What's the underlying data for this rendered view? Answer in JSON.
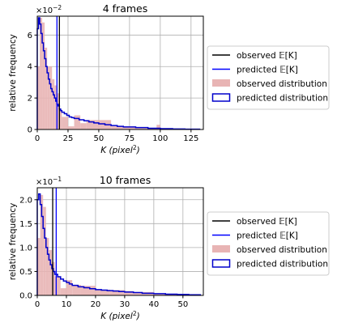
{
  "chart_data": [
    {
      "type": "bar",
      "title": "4 frames",
      "xlabel_main": "K",
      "xlabel_unit": "(pixel",
      "xlabel_sup": "2",
      "xlabel_close": ")",
      "ylabel": "relative frequency",
      "scale_prefix": "×10",
      "scale_exp": "−2",
      "xlim": [
        0,
        135
      ],
      "ylim": [
        0,
        0.072
      ],
      "xticks": [
        0,
        25,
        50,
        75,
        100,
        125
      ],
      "xtick_labels": [
        "0",
        "25",
        "50",
        "75",
        "100",
        "125"
      ],
      "yticks": [
        0,
        0.02,
        0.04,
        0.06
      ],
      "ytick_labels": [
        "0",
        "2",
        "4",
        "6"
      ],
      "grid": true,
      "legend_position": "right",
      "observed_mean": 18,
      "predicted_mean": 16,
      "observed_hist": {
        "edges": [
          0,
          2,
          4,
          6,
          8,
          10,
          12,
          14,
          16,
          18,
          20,
          25,
          30,
          35,
          40,
          50,
          60,
          70,
          80,
          90,
          97,
          100,
          110,
          120,
          130
        ],
        "values": [
          0.04,
          0.071,
          0.068,
          0.052,
          0.04,
          0.04,
          0.032,
          0.028,
          0.023,
          0.012,
          0.008,
          0.002,
          0.009,
          0.004,
          0.006,
          0.006,
          0.002,
          0.002,
          0.0008,
          0.0008,
          0.003,
          0.0003,
          0.0002,
          0.0002
        ]
      },
      "predicted_hist": {
        "edges": [
          0,
          1,
          2,
          3,
          4,
          5,
          6,
          7,
          8,
          9,
          10,
          11,
          12,
          13,
          14,
          15,
          16,
          17,
          18,
          19,
          20,
          22,
          24,
          26,
          28,
          30,
          34,
          38,
          42,
          46,
          50,
          55,
          60,
          65,
          70,
          80,
          90,
          100,
          110,
          120,
          132
        ],
        "values": [
          0.064,
          0.071,
          0.067,
          0.061,
          0.055,
          0.05,
          0.045,
          0.04,
          0.036,
          0.032,
          0.029,
          0.026,
          0.024,
          0.022,
          0.02,
          0.018,
          0.016,
          0.015,
          0.013,
          0.012,
          0.011,
          0.01,
          0.009,
          0.008,
          0.0075,
          0.007,
          0.0062,
          0.0055,
          0.0048,
          0.0042,
          0.0036,
          0.003,
          0.0025,
          0.002,
          0.0016,
          0.0012,
          0.0008,
          0.0005,
          0.0003,
          0.0002
        ]
      },
      "series": [
        {
          "name": "observed 𝔼[K]",
          "color": "#000000"
        },
        {
          "name": "predicted 𝔼[K]",
          "color": "#0000ff"
        },
        {
          "name": "observed distribution",
          "color": "#e8b4b4"
        },
        {
          "name": "predicted distribution",
          "color": "#0000cc"
        }
      ]
    },
    {
      "type": "bar",
      "title": "10 frames",
      "xlabel_main": "K",
      "xlabel_unit": "(pixel",
      "xlabel_sup": "2",
      "xlabel_close": ")",
      "ylabel": "relative frequency",
      "scale_prefix": "×10",
      "scale_exp": "−1",
      "xlim": [
        0,
        57
      ],
      "ylim": [
        0,
        0.225
      ],
      "xticks": [
        0,
        10,
        20,
        30,
        40,
        50
      ],
      "xtick_labels": [
        "0",
        "10",
        "20",
        "30",
        "40",
        "50"
      ],
      "yticks": [
        0,
        0.05,
        0.1,
        0.15,
        0.2
      ],
      "ytick_labels": [
        "0.0",
        "0.5",
        "1.0",
        "1.5",
        "2.0"
      ],
      "grid": true,
      "legend_position": "right",
      "observed_mean": 5.3,
      "predicted_mean": 6.5,
      "observed_hist": {
        "edges": [
          0,
          1,
          2,
          3,
          4,
          5,
          6,
          8,
          10,
          12,
          15,
          20,
          25,
          30,
          33,
          40,
          45,
          50,
          55
        ],
        "values": [
          0.12,
          0.21,
          0.185,
          0.12,
          0.095,
          0.07,
          0.04,
          0.015,
          0.032,
          0.022,
          0.02,
          0.012,
          0.011,
          0.009,
          0.007,
          0.003,
          0.002,
          0.001
        ]
      },
      "predicted_hist": {
        "edges": [
          0,
          0.5,
          1,
          1.5,
          2,
          2.5,
          3,
          3.5,
          4,
          4.5,
          5,
          5.5,
          6,
          7,
          8,
          9,
          10,
          11,
          12,
          14,
          16,
          18,
          20,
          22,
          24,
          26,
          28,
          30,
          33,
          36,
          40,
          44,
          48,
          52,
          56
        ],
        "values": [
          0.2,
          0.212,
          0.19,
          0.165,
          0.14,
          0.12,
          0.1,
          0.086,
          0.074,
          0.064,
          0.056,
          0.05,
          0.044,
          0.039,
          0.034,
          0.03,
          0.027,
          0.024,
          0.021,
          0.018,
          0.016,
          0.014,
          0.012,
          0.011,
          0.01,
          0.009,
          0.008,
          0.007,
          0.006,
          0.0045,
          0.0035,
          0.0025,
          0.0018,
          0.0012
        ]
      },
      "series": [
        {
          "name": "observed 𝔼[K]",
          "color": "#000000"
        },
        {
          "name": "predicted 𝔼[K]",
          "color": "#0000ff"
        },
        {
          "name": "observed distribution",
          "color": "#e8b4b4"
        },
        {
          "name": "predicted distribution",
          "color": "#0000cc"
        }
      ]
    }
  ]
}
